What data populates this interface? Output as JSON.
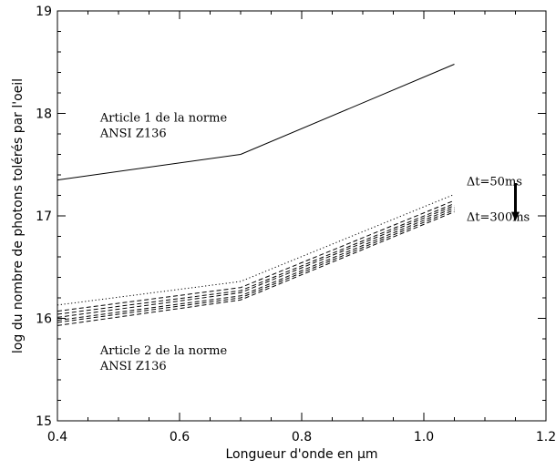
{
  "chart_data": {
    "type": "line",
    "title": "",
    "xlabel": "Longueur d'onde en μm",
    "ylabel": "log du nombre de photons tolérés par l'oeil",
    "xlim": [
      0.4,
      1.2
    ],
    "ylim": [
      15,
      19
    ],
    "xticks": [
      0.4,
      0.6,
      0.8,
      1.0,
      1.2
    ],
    "xtick_labels": [
      "0.4",
      "0.6",
      "0.8",
      "1.0",
      "1.2"
    ],
    "yticks": [
      15,
      16,
      17,
      18,
      19
    ],
    "ytick_labels": [
      "15",
      "16",
      "17",
      "18",
      "19"
    ],
    "grid": false,
    "series": [
      {
        "style": "solid",
        "x": [
          0.4,
          0.7,
          1.05
        ],
        "y": [
          17.35,
          17.6,
          18.48
        ]
      },
      {
        "style": "dotted",
        "x": [
          0.4,
          0.7,
          1.05
        ],
        "y": [
          16.13,
          16.36,
          17.21
        ]
      },
      {
        "style": "dashed",
        "x": [
          0.4,
          0.7,
          1.05
        ],
        "y": [
          16.07,
          16.3,
          17.15
        ]
      },
      {
        "style": "dashed",
        "x": [
          0.4,
          0.7,
          1.05
        ],
        "y": [
          16.04,
          16.27,
          17.12
        ]
      },
      {
        "style": "dashed",
        "x": [
          0.4,
          0.7,
          1.05
        ],
        "y": [
          16.01,
          16.25,
          17.1
        ]
      },
      {
        "style": "dashed",
        "x": [
          0.4,
          0.7,
          1.05
        ],
        "y": [
          15.98,
          16.22,
          17.08
        ]
      },
      {
        "style": "dashed",
        "x": [
          0.4,
          0.7,
          1.05
        ],
        "y": [
          15.96,
          16.2,
          17.06
        ]
      },
      {
        "style": "dashed",
        "x": [
          0.4,
          0.7,
          1.05
        ],
        "y": [
          15.93,
          16.18,
          17.04
        ]
      }
    ],
    "annotations": [
      {
        "lines": [
          "Article 1 de la norme",
          "ANSI Z136"
        ],
        "x": 0.47,
        "y": 17.92
      },
      {
        "lines": [
          "Article 2 de la norme",
          "ANSI Z136"
        ],
        "x": 0.47,
        "y": 15.65
      },
      {
        "lines": [
          "Δt=50ms"
        ],
        "x": 1.07,
        "y": 17.3
      },
      {
        "lines": [
          "Δt=300ms"
        ],
        "x": 1.07,
        "y": 16.95
      }
    ],
    "arrow": {
      "x": 1.15,
      "y_from": 17.32,
      "y_to": 16.95
    }
  }
}
